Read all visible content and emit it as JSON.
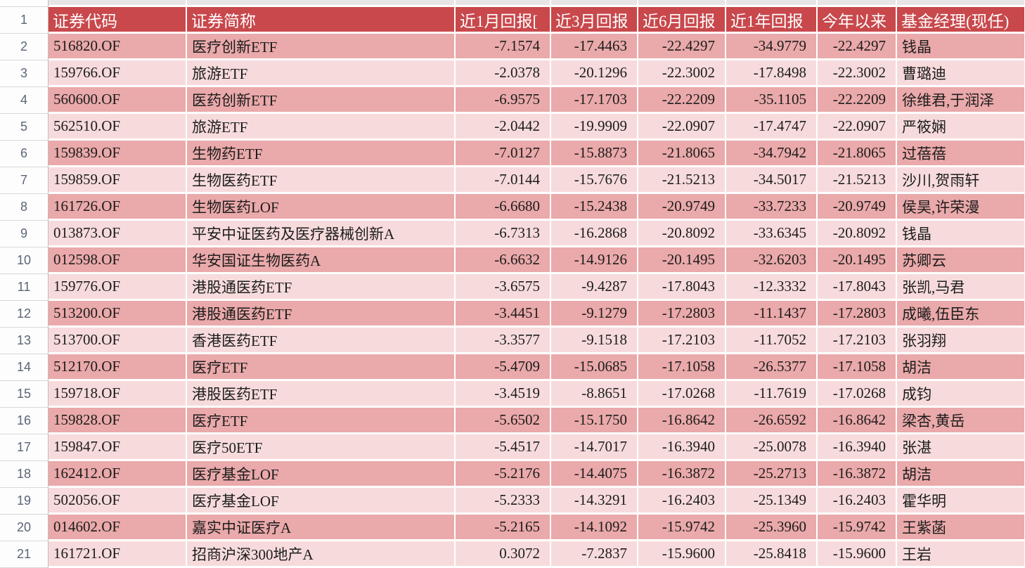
{
  "colors": {
    "header_bg": "#C8484C",
    "header_text": "#FFFFFF",
    "row_dark": "#EAA9AA",
    "row_light": "#F7DBDC",
    "grid_gap": "#FFFFFF",
    "gutter_text": "#5A6577",
    "cell_text": "#1C1C1C"
  },
  "gutter": {
    "row_numbers": [
      "1",
      "2",
      "3",
      "4",
      "5",
      "6",
      "7",
      "8",
      "9",
      "10",
      "11",
      "12",
      "13",
      "14",
      "15",
      "16",
      "17",
      "18",
      "19",
      "20",
      "21"
    ]
  },
  "table": {
    "columns": [
      {
        "key": "code",
        "label": "证券代码",
        "align": "left"
      },
      {
        "key": "name",
        "label": "证券简称",
        "align": "left"
      },
      {
        "key": "r1m",
        "label": "近1月回报[",
        "align": "right"
      },
      {
        "key": "r3m",
        "label": "近3月回报",
        "align": "right"
      },
      {
        "key": "r6m",
        "label": "近6月回报",
        "align": "right"
      },
      {
        "key": "r1y",
        "label": "近1年回报",
        "align": "right"
      },
      {
        "key": "ytd",
        "label": "今年以来",
        "align": "right"
      },
      {
        "key": "manager",
        "label": "基金经理(现任)",
        "align": "left"
      }
    ],
    "rows": [
      {
        "row_num": "2",
        "code": "516820.OF",
        "name": "医疗创新ETF",
        "r1m": "-7.1574",
        "r3m": "-17.4463",
        "r6m": "-22.4297",
        "r1y": "-34.9779",
        "ytd": "-22.4297",
        "manager": "钱晶"
      },
      {
        "row_num": "3",
        "code": "159766.OF",
        "name": "旅游ETF",
        "r1m": "-2.0378",
        "r3m": "-20.1296",
        "r6m": "-22.3002",
        "r1y": "-17.8498",
        "ytd": "-22.3002",
        "manager": "曹璐迪"
      },
      {
        "row_num": "4",
        "code": "560600.OF",
        "name": "医药创新ETF",
        "r1m": "-6.9575",
        "r3m": "-17.1703",
        "r6m": "-22.2209",
        "r1y": "-35.1105",
        "ytd": "-22.2209",
        "manager": "徐维君,于润泽"
      },
      {
        "row_num": "5",
        "code": "562510.OF",
        "name": "旅游ETF",
        "r1m": "-2.0442",
        "r3m": "-19.9909",
        "r6m": "-22.0907",
        "r1y": "-17.4747",
        "ytd": "-22.0907",
        "manager": "严筱娴"
      },
      {
        "row_num": "6",
        "code": "159839.OF",
        "name": "生物药ETF",
        "r1m": "-7.0127",
        "r3m": "-15.8873",
        "r6m": "-21.8065",
        "r1y": "-34.7942",
        "ytd": "-21.8065",
        "manager": "过蓓蓓"
      },
      {
        "row_num": "7",
        "code": "159859.OF",
        "name": "生物医药ETF",
        "r1m": "-7.0144",
        "r3m": "-15.7676",
        "r6m": "-21.5213",
        "r1y": "-34.5017",
        "ytd": "-21.5213",
        "manager": "沙川,贺雨轩"
      },
      {
        "row_num": "8",
        "code": "161726.OF",
        "name": "生物医药LOF",
        "r1m": "-6.6680",
        "r3m": "-15.2438",
        "r6m": "-20.9749",
        "r1y": "-33.7233",
        "ytd": "-20.9749",
        "manager": "侯昊,许荣漫"
      },
      {
        "row_num": "9",
        "code": "013873.OF",
        "name": "平安中证医药及医疗器械创新A",
        "r1m": "-6.7313",
        "r3m": "-16.2868",
        "r6m": "-20.8092",
        "r1y": "-33.6345",
        "ytd": "-20.8092",
        "manager": "钱晶"
      },
      {
        "row_num": "10",
        "code": "012598.OF",
        "name": "华安国证生物医药A",
        "r1m": "-6.6632",
        "r3m": "-14.9126",
        "r6m": "-20.1495",
        "r1y": "-32.6203",
        "ytd": "-20.1495",
        "manager": "苏卿云"
      },
      {
        "row_num": "11",
        "code": "159776.OF",
        "name": "港股通医药ETF",
        "r1m": "-3.6575",
        "r3m": "-9.4287",
        "r6m": "-17.8043",
        "r1y": "-12.3332",
        "ytd": "-17.8043",
        "manager": "张凯,马君"
      },
      {
        "row_num": "12",
        "code": "513200.OF",
        "name": "港股通医药ETF",
        "r1m": "-3.4451",
        "r3m": "-9.1279",
        "r6m": "-17.2803",
        "r1y": "-11.1437",
        "ytd": "-17.2803",
        "manager": "成曦,伍臣东"
      },
      {
        "row_num": "13",
        "code": "513700.OF",
        "name": "香港医药ETF",
        "r1m": "-3.3577",
        "r3m": "-9.1518",
        "r6m": "-17.2103",
        "r1y": "-11.7052",
        "ytd": "-17.2103",
        "manager": "张羽翔"
      },
      {
        "row_num": "14",
        "code": "512170.OF",
        "name": "医疗ETF",
        "r1m": "-5.4709",
        "r3m": "-15.0685",
        "r6m": "-17.1058",
        "r1y": "-26.5377",
        "ytd": "-17.1058",
        "manager": "胡洁"
      },
      {
        "row_num": "15",
        "code": "159718.OF",
        "name": "港股医药ETF",
        "r1m": "-3.4519",
        "r3m": "-8.8651",
        "r6m": "-17.0268",
        "r1y": "-11.7619",
        "ytd": "-17.0268",
        "manager": "成钧"
      },
      {
        "row_num": "16",
        "code": "159828.OF",
        "name": "医疗ETF",
        "r1m": "-5.6502",
        "r3m": "-15.1750",
        "r6m": "-16.8642",
        "r1y": "-26.6592",
        "ytd": "-16.8642",
        "manager": "梁杏,黄岳"
      },
      {
        "row_num": "17",
        "code": "159847.OF",
        "name": "医疗50ETF",
        "r1m": "-5.4517",
        "r3m": "-14.7017",
        "r6m": "-16.3940",
        "r1y": "-25.0078",
        "ytd": "-16.3940",
        "manager": "张湛"
      },
      {
        "row_num": "18",
        "code": "162412.OF",
        "name": "医疗基金LOF",
        "r1m": "-5.2176",
        "r3m": "-14.4075",
        "r6m": "-16.3872",
        "r1y": "-25.2713",
        "ytd": "-16.3872",
        "manager": "胡洁"
      },
      {
        "row_num": "19",
        "code": "502056.OF",
        "name": "医疗基金LOF",
        "r1m": "-5.2333",
        "r3m": "-14.3291",
        "r6m": "-16.2403",
        "r1y": "-25.1349",
        "ytd": "-16.2403",
        "manager": "霍华明"
      },
      {
        "row_num": "20",
        "code": "014602.OF",
        "name": "嘉实中证医疗A",
        "r1m": "-5.2165",
        "r3m": "-14.1092",
        "r6m": "-15.9742",
        "r1y": "-25.3960",
        "ytd": "-15.9742",
        "manager": "王紫菡"
      },
      {
        "row_num": "21",
        "code": "161721.OF",
        "name": "招商沪深300地产A",
        "r1m": "0.3072",
        "r3m": "-7.2837",
        "r6m": "-15.9600",
        "r1y": "-25.8418",
        "ytd": "-15.9600",
        "manager": "王岩"
      }
    ]
  }
}
